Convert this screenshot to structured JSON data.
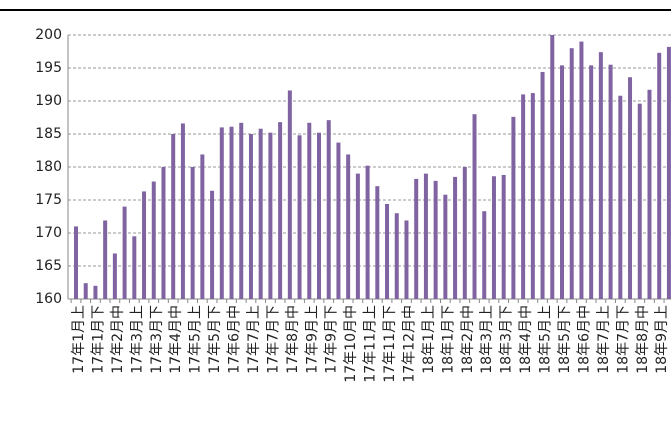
{
  "chart_data": {
    "type": "bar",
    "categories": [
      "17年1月上",
      null,
      "17年1月下",
      null,
      "17年2月中",
      null,
      "17年3月上",
      null,
      "17年3月下",
      null,
      "17年4月中",
      null,
      "17年5月上",
      null,
      "17年5月下",
      null,
      "17年6月中",
      null,
      "17年7月上",
      null,
      "17年7月下",
      null,
      "17年8月中",
      null,
      "17年9月上",
      null,
      "17年9月下",
      null,
      "17年10月中",
      null,
      "17年11月上",
      null,
      "17年11月下",
      null,
      "17年12月中",
      null,
      "18年1月上",
      null,
      "18年1月下",
      null,
      "18年2月中",
      null,
      "18年3月上",
      null,
      "18年3月下",
      null,
      "18年4月中",
      null,
      "18年5月上",
      null,
      "18年5月下",
      null,
      "18年6月中",
      null,
      "18年7月上",
      null,
      "18年7月下",
      null,
      "18年8月中",
      null,
      "18年9月上",
      null
    ],
    "values": [
      171,
      162.4,
      162,
      171.9,
      166.9,
      174,
      169.5,
      176.3,
      177.8,
      180,
      185,
      186.6,
      180,
      181.9,
      176.4,
      186,
      186.1,
      186.7,
      185,
      185.8,
      185.2,
      186.8,
      191.6,
      184.8,
      186.7,
      185.2,
      187.1,
      183.7,
      181.9,
      179,
      180.2,
      177.1,
      174.4,
      173,
      171.9,
      178.2,
      179,
      177.9,
      175.8,
      178.5,
      180,
      188,
      173.3,
      178.6,
      178.8,
      187.6,
      191,
      191.2,
      194.4,
      200,
      195.4,
      198,
      199,
      195.4,
      197.4,
      195.5,
      190.8,
      193.6,
      189.6,
      191.7,
      197.3,
      198.2
    ],
    "color": "#8064a2",
    "ylim": [
      160,
      200
    ],
    "yticks": [
      160,
      165,
      170,
      175,
      180,
      185,
      190,
      195,
      200
    ],
    "grid": true
  }
}
